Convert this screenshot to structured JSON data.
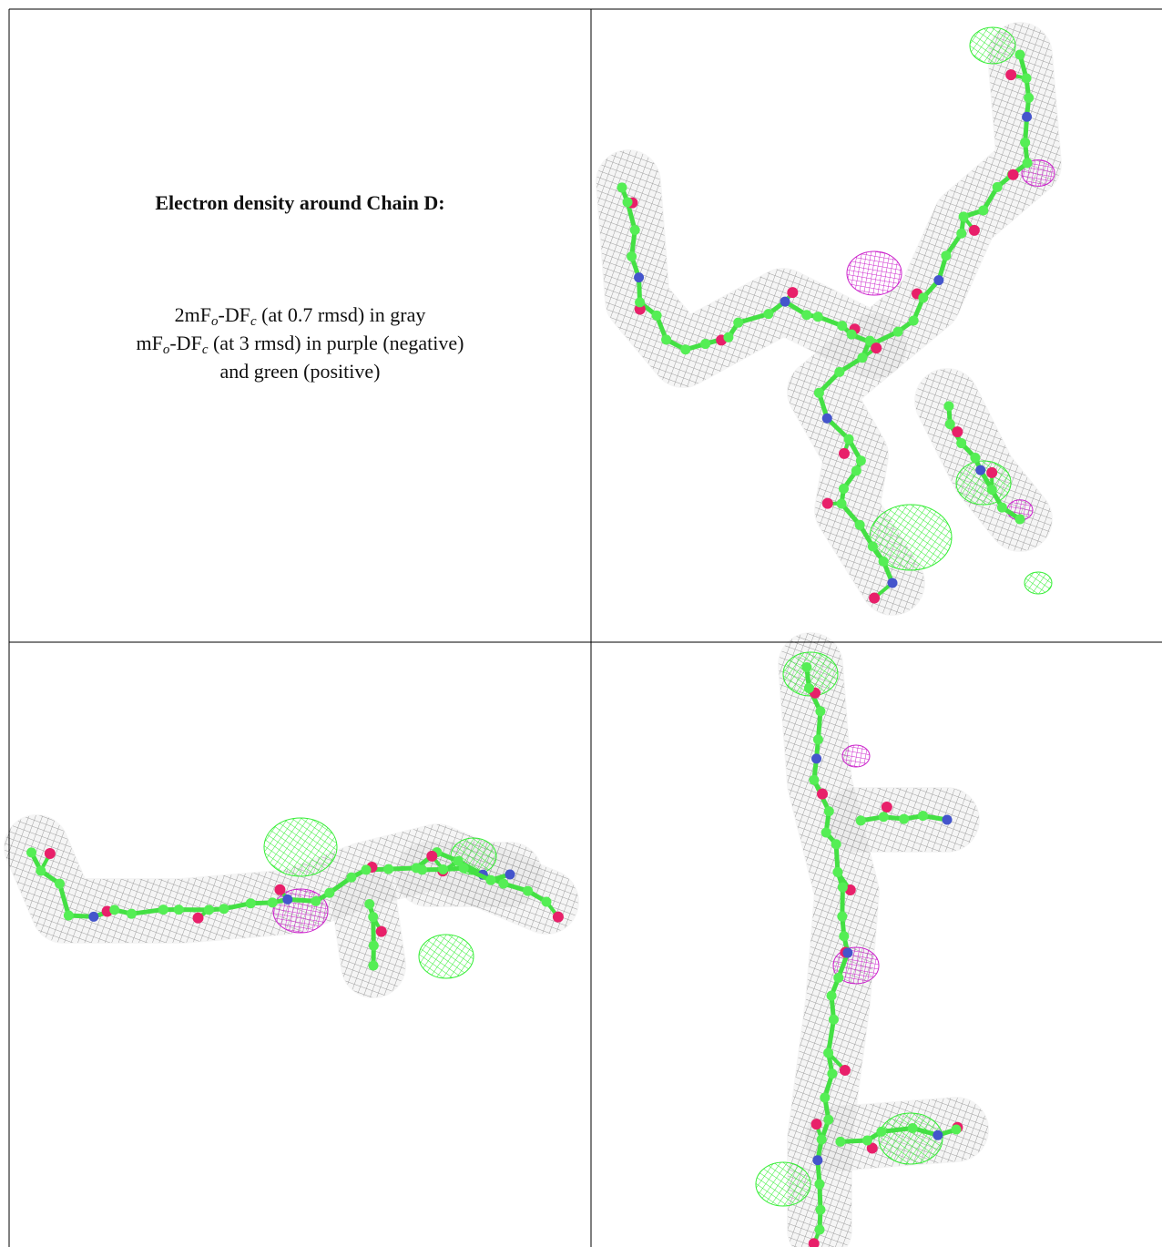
{
  "panel_text": {
    "title": "Electron density around Chain D:",
    "lines": [
      [
        "2mF",
        "o",
        "-DF",
        "c",
        " (at 0.7 rmsd) in gray"
      ],
      [
        "mF",
        "o",
        "-DF",
        "c",
        " (at 3 rmsd) in purple (negative)"
      ],
      [
        "and green (positive)"
      ]
    ]
  }
}
